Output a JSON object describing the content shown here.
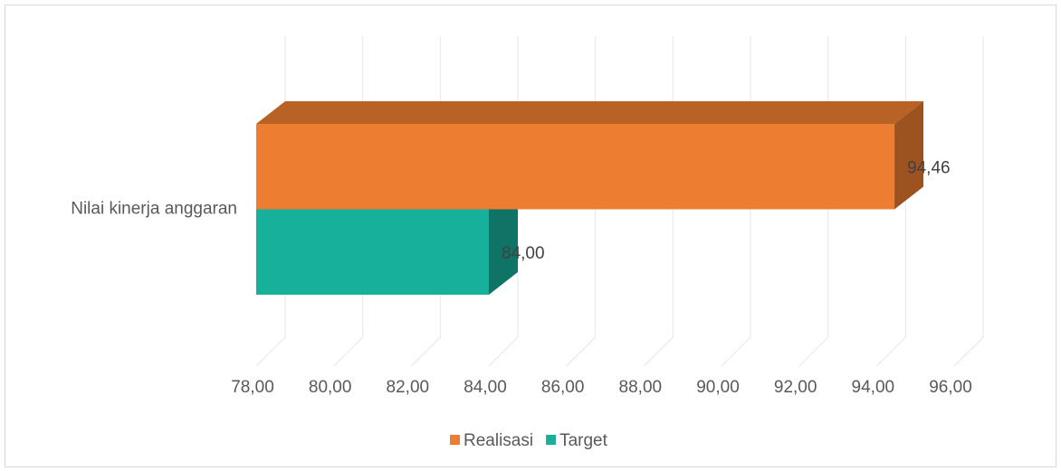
{
  "chart_data": {
    "type": "bar3d_horizontal",
    "categories": [
      "Nilai kinerja anggaran"
    ],
    "series": [
      {
        "name": "Realisasi",
        "color": "#ED7D31",
        "values": [
          94.46
        ],
        "value_labels": [
          "94,46"
        ]
      },
      {
        "name": "Target",
        "color": "#17B09A",
        "values": [
          84
        ],
        "value_labels": [
          "84,00"
        ]
      }
    ],
    "xlim": [
      78,
      96
    ],
    "xticks": [
      {
        "value": 78,
        "label": "78,00"
      },
      {
        "value": 80,
        "label": "80,00"
      },
      {
        "value": 82,
        "label": "82,00"
      },
      {
        "value": 84,
        "label": "84,00"
      },
      {
        "value": 86,
        "label": "86,00"
      },
      {
        "value": 88,
        "label": "88,00"
      },
      {
        "value": 90,
        "label": "90,00"
      },
      {
        "value": 92,
        "label": "92,00"
      },
      {
        "value": 94,
        "label": "94,00"
      },
      {
        "value": 96,
        "label": "96,00"
      }
    ],
    "grid": true,
    "legend": "bottom"
  }
}
